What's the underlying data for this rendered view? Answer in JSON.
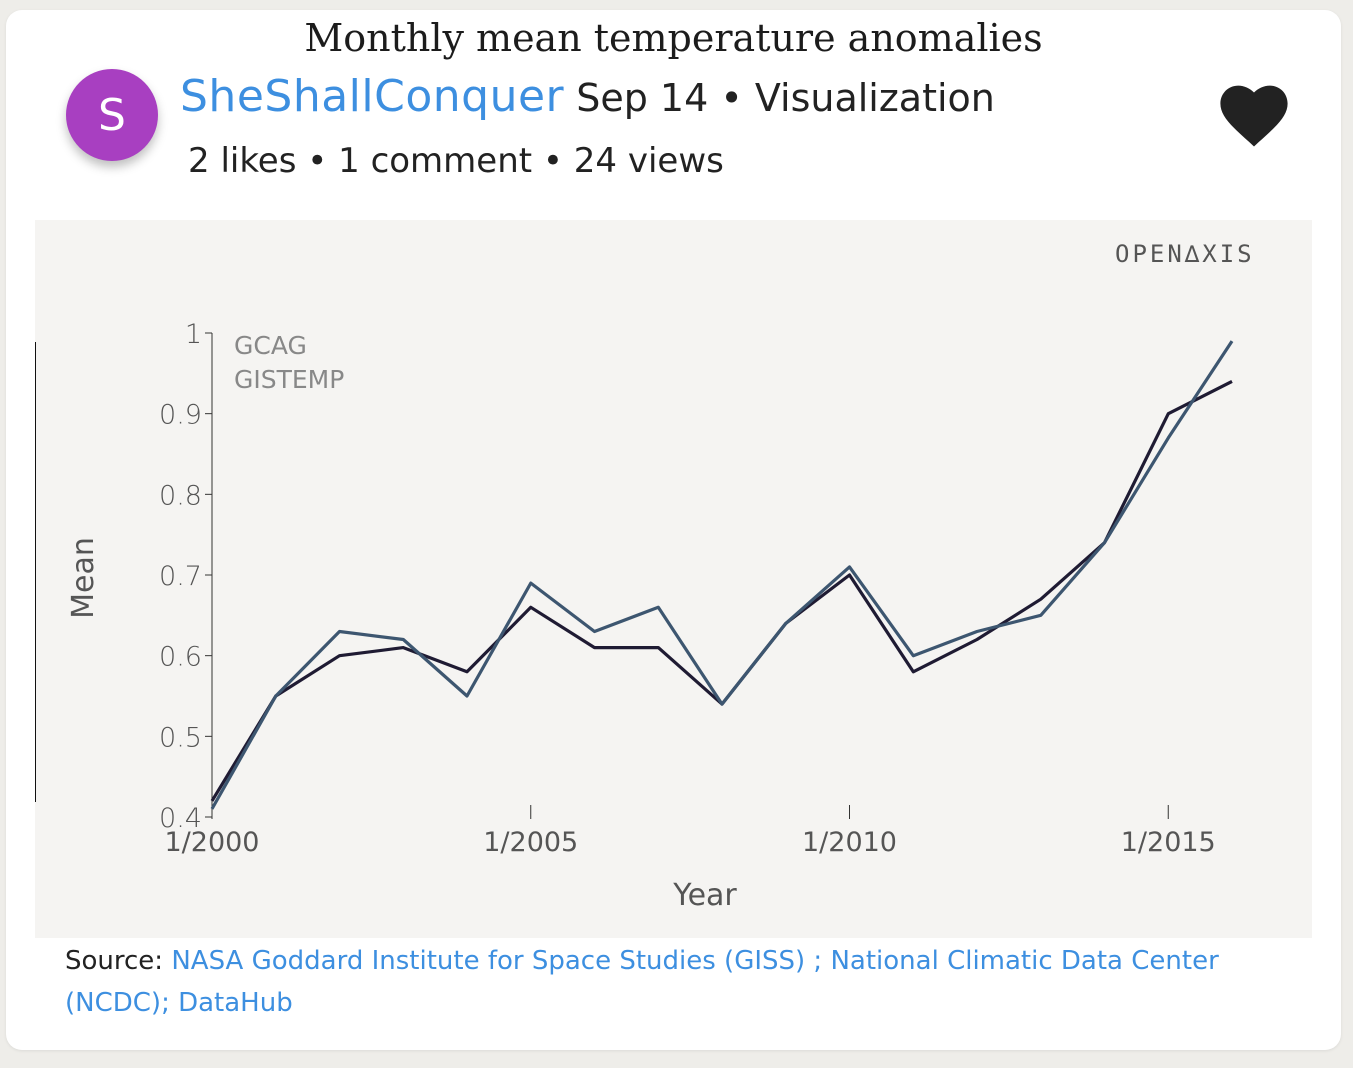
{
  "post": {
    "avatar_letter": "S",
    "username": "SheShallConquer",
    "date": "Sep 14",
    "category": "Visualization",
    "likes": "2 likes",
    "comments": "1 comment",
    "views": "24 views",
    "separator": " • "
  },
  "brand": "OPEN∆XIS",
  "source": {
    "label": "Source: ",
    "link_text": "NASA Goddard Institute for Space Studies (GISS) ; National Climatic Data Center (NCDC); DataHub"
  },
  "colors": {
    "accent": "#3d8fe0",
    "avatar": "#a83fc1",
    "gcag": "#1f1b33",
    "gistemp": "#3d5670"
  },
  "chart_data": {
    "type": "line",
    "title": "Monthly mean temperature anomalies",
    "xlabel": "Year",
    "ylabel": "Mean",
    "x": [
      "1/2000",
      "1/2001",
      "1/2002",
      "1/2003",
      "1/2004",
      "1/2005",
      "1/2006",
      "1/2007",
      "1/2008",
      "1/2009",
      "1/2010",
      "1/2011",
      "1/2012",
      "1/2013",
      "1/2014",
      "1/2015",
      "1/2016"
    ],
    "xticks": [
      "1/2000",
      "1/2005",
      "1/2010",
      "1/2015"
    ],
    "yticks": [
      "0.4",
      "0.5",
      "0.6",
      "0.7",
      "0.8",
      "0.9",
      "1"
    ],
    "ylim": [
      0.4,
      1.0
    ],
    "legend_position": "top-left",
    "grid": false,
    "series": [
      {
        "name": "GCAG",
        "values": [
          0.42,
          0.55,
          0.6,
          0.61,
          0.58,
          0.66,
          0.61,
          0.61,
          0.54,
          0.64,
          0.7,
          0.58,
          0.62,
          0.67,
          0.74,
          0.9,
          0.94
        ]
      },
      {
        "name": "GISTEMP",
        "values": [
          0.41,
          0.55,
          0.63,
          0.62,
          0.55,
          0.69,
          0.63,
          0.66,
          0.54,
          0.64,
          0.71,
          0.6,
          0.63,
          0.65,
          0.74,
          0.87,
          0.99
        ]
      }
    ]
  }
}
